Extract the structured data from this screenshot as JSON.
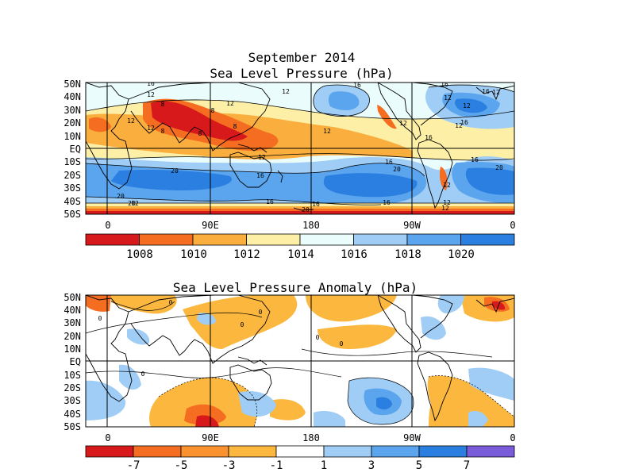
{
  "panel_top": {
    "title_line1": "September 2014",
    "title_line2": "Sea Level Pressure (hPa)",
    "lat_labels": [
      "50N",
      "40N",
      "30N",
      "20N",
      "10N",
      "EQ",
      "10S",
      "20S",
      "30S",
      "40S",
      "50S"
    ],
    "lon_labels": [
      "0",
      "90E",
      "180",
      "90W",
      "0"
    ],
    "contour_labels": [
      "16",
      "12",
      "16",
      "12",
      "16",
      "12",
      "12",
      "16",
      "12",
      "8",
      "8",
      "8",
      "12",
      "12",
      "12",
      "16",
      "16",
      "20",
      "20",
      "16",
      "12",
      "16",
      "20",
      "16",
      "20",
      "12",
      "12",
      "16",
      "20",
      "20",
      "16",
      "12",
      "12",
      "12",
      "16",
      "12",
      "8",
      "12",
      "8"
    ],
    "colorbar": {
      "colors": [
        "#d7191c",
        "#f46d20",
        "#f9ae3d",
        "#fdf0a6",
        "#eafcfc",
        "#9fcdf5",
        "#5aa5ee",
        "#2b7fe0"
      ],
      "labels": [
        "1008",
        "1010",
        "1012",
        "1014",
        "1016",
        "1018",
        "1020"
      ]
    }
  },
  "panel_bottom": {
    "title": "Sea Level Pressure Anomaly (hPa)",
    "lat_labels": [
      "50N",
      "40N",
      "30N",
      "20N",
      "10N",
      "EQ",
      "10S",
      "20S",
      "30S",
      "40S",
      "50S"
    ],
    "lon_labels": [
      "0",
      "90E",
      "180",
      "90W",
      "0"
    ],
    "contour_labels": [
      "0",
      "0",
      "0",
      "0",
      "0",
      "0",
      "0"
    ],
    "colorbar": {
      "colors": [
        "#d7191c",
        "#f46d20",
        "#fb9230",
        "#fcb73e",
        "#ffffff",
        "#9fcdf5",
        "#5aa5ee",
        "#2b7fe0",
        "#7a5bd9"
      ],
      "labels": [
        "-7",
        "-5",
        "-3",
        "-1",
        "1",
        "3",
        "5",
        "7"
      ]
    }
  }
}
